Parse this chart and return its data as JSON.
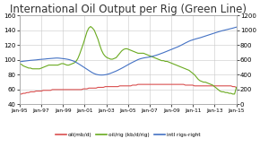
{
  "title": "International Oil Output per Rig (Green Line)",
  "title_fontsize": 8.5,
  "left_ylim": [
    40.0,
    160.0
  ],
  "right_ylim": [
    0,
    1200
  ],
  "left_yticks": [
    40.0,
    60.0,
    80.0,
    100.0,
    120.0,
    140.0,
    160.0
  ],
  "right_yticks": [
    0,
    200,
    400,
    600,
    800,
    1000,
    1200
  ],
  "xtick_labels": [
    "Jan-95",
    "Jan-97",
    "Jan-99",
    "Jan-01",
    "Jan-03",
    "Jan-05",
    "Jan-07",
    "Jan-09",
    "Jan-11",
    "Jan-13",
    "Jan-15"
  ],
  "legend_labels": [
    "oil(mb/d)",
    "oil/rig (kb/d/rig)",
    "intl rigs-right"
  ],
  "legend_colors": [
    "#d94f4f",
    "#6aaa20",
    "#4472c4"
  ],
  "background_color": "#ffffff",
  "grid_color": "#c8c8c8",
  "oil_color": "#d94f4f",
  "oilrig_color": "#6aaa20",
  "rigs_color": "#4472c4",
  "oil_y": [
    54,
    54,
    55,
    55,
    56,
    56,
    57,
    57,
    57,
    58,
    58,
    58,
    58,
    59,
    59,
    59,
    59,
    59,
    60,
    60,
    60,
    60,
    60,
    60,
    60,
    60,
    60,
    60,
    60,
    60,
    60,
    60,
    60,
    60,
    60,
    61,
    61,
    61,
    62,
    62,
    62,
    62,
    62,
    63,
    63,
    63,
    63,
    64,
    64,
    64,
    64,
    64,
    64,
    64,
    64,
    65,
    65,
    65,
    65,
    65,
    65,
    65,
    66,
    66,
    66,
    67,
    67,
    67,
    67,
    67,
    67,
    67,
    67,
    67,
    67,
    67,
    67,
    67,
    67,
    67,
    67,
    67,
    67,
    67,
    67,
    67,
    67,
    67,
    67,
    67,
    67,
    66,
    66,
    66,
    66,
    66,
    65,
    65,
    65,
    65,
    65,
    65,
    65,
    65,
    65,
    65,
    65,
    65,
    65,
    65,
    65,
    65,
    65,
    65,
    65,
    65,
    65,
    64,
    64,
    63
  ],
  "oilrig_y": [
    95,
    94,
    92,
    91,
    90,
    89,
    89,
    88,
    88,
    88,
    88,
    88,
    89,
    90,
    91,
    92,
    93,
    93,
    93,
    93,
    93,
    93,
    94,
    95,
    95,
    94,
    93,
    93,
    94,
    95,
    96,
    98,
    102,
    108,
    115,
    122,
    130,
    138,
    143,
    145,
    143,
    140,
    134,
    128,
    120,
    113,
    108,
    105,
    103,
    102,
    101,
    101,
    102,
    103,
    106,
    109,
    112,
    114,
    115,
    115,
    114,
    113,
    112,
    111,
    110,
    109,
    109,
    109,
    109,
    108,
    107,
    106,
    105,
    104,
    103,
    102,
    101,
    100,
    99,
    99,
    98,
    98,
    97,
    96,
    95,
    94,
    93,
    92,
    91,
    90,
    89,
    88,
    87,
    86,
    84,
    82,
    80,
    77,
    74,
    72,
    71,
    70,
    70,
    69,
    68,
    67,
    66,
    64,
    62,
    60,
    58,
    57,
    57,
    56,
    56,
    55,
    55,
    54,
    54,
    63
  ],
  "rigs_y": [
    575,
    578,
    582,
    585,
    588,
    591,
    594,
    596,
    598,
    600,
    603,
    606,
    608,
    610,
    612,
    615,
    617,
    619,
    621,
    623,
    625,
    625,
    623,
    620,
    617,
    614,
    610,
    605,
    598,
    590,
    580,
    567,
    553,
    538,
    522,
    506,
    490,
    474,
    458,
    442,
    427,
    415,
    406,
    400,
    397,
    396,
    397,
    400,
    405,
    412,
    420,
    430,
    440,
    450,
    462,
    474,
    487,
    500,
    514,
    528,
    542,
    555,
    568,
    580,
    592,
    604,
    613,
    620,
    626,
    630,
    634,
    638,
    643,
    649,
    656,
    663,
    671,
    680,
    689,
    698,
    708,
    718,
    728,
    738,
    748,
    758,
    768,
    778,
    790,
    802,
    815,
    828,
    840,
    852,
    862,
    870,
    878,
    885,
    892,
    898,
    906,
    914,
    922,
    930,
    938,
    946,
    954,
    962,
    970,
    978,
    985,
    992,
    998,
    1004,
    1010,
    1016,
    1022,
    1028,
    1035,
    1042
  ]
}
